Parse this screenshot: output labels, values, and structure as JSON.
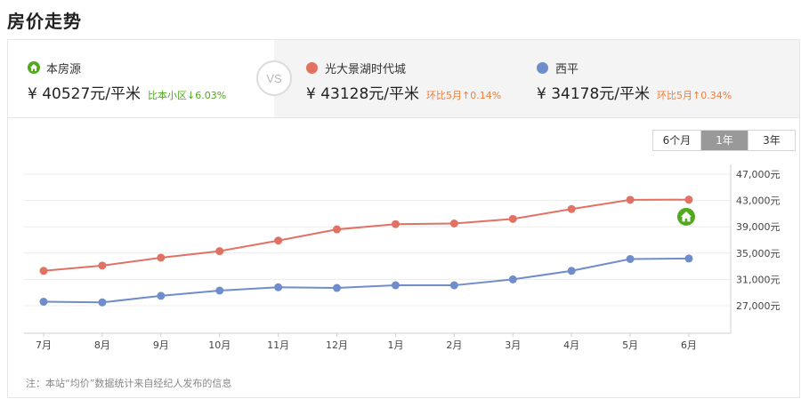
{
  "title": "房价走势",
  "compare": {
    "vs_label": "VS",
    "this_listing": {
      "name": "本房源",
      "price": "¥ 40527元/平米",
      "change": "比本小区↓6.03%",
      "color": "#52a81e"
    },
    "community": {
      "name": "光大景湖时代城",
      "price": "¥ 43128元/平米",
      "change": "环比5月↑0.14%",
      "color": "#e07163"
    },
    "district": {
      "name": "西平",
      "price": "¥ 34178元/平米",
      "change": "环比5月↑0.34%",
      "color": "#6f8dcb"
    },
    "change_color": "#f07c3c"
  },
  "range_tabs": [
    {
      "label": "6个月",
      "active": false
    },
    {
      "label": "1年",
      "active": true
    },
    {
      "label": "3年",
      "active": false
    }
  ],
  "chart_data": {
    "type": "line",
    "categories": [
      "7月",
      "8月",
      "9月",
      "10月",
      "11月",
      "12月",
      "1月",
      "2月",
      "3月",
      "4月",
      "5月",
      "6月"
    ],
    "series": [
      {
        "values": [
          32300,
          33100,
          34300,
          35300,
          36900,
          38600,
          39400,
          39500,
          40200,
          41700,
          43100,
          43128
        ],
        "color": "#e07163"
      },
      {
        "values": [
          27600,
          27500,
          28500,
          29300,
          29800,
          29700,
          30100,
          30100,
          31000,
          32300,
          34100,
          34178
        ],
        "color": "#6f8dcb"
      }
    ],
    "marker": {
      "value": 40527,
      "color": "#52a81e"
    },
    "yticks": [
      27000,
      31000,
      35000,
      39000,
      43000,
      47000
    ],
    "ytick_labels": [
      "27,000元",
      "31,000元",
      "35,000元",
      "39,000元",
      "43,000元",
      "47,000元"
    ],
    "ylim": [
      24000,
      47500
    ],
    "grid": true
  },
  "note": "注：本站“均价”数据统计来自经纪人发布的信息"
}
